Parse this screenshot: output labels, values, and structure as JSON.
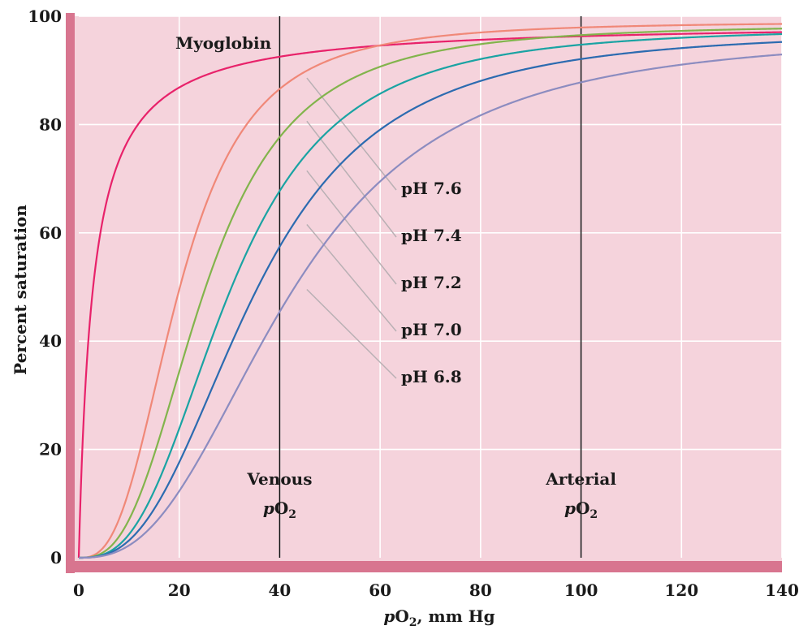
{
  "chart_data": {
    "type": "line",
    "xlabel_p": "p",
    "xlabel_o": "O",
    "xlabel_sub": "2",
    "xlabel_rest": ", mm Hg",
    "ylabel": "Percent saturation",
    "xlim": [
      0,
      140
    ],
    "ylim": [
      0,
      100
    ],
    "xticks": [
      0,
      20,
      40,
      60,
      80,
      100,
      120,
      140
    ],
    "yticks": [
      0,
      20,
      40,
      60,
      80,
      100
    ],
    "grid": true,
    "colors": {
      "plot_bg": "#f5d3dc",
      "frame": "#d8758f",
      "grid": "#ffffff"
    },
    "series": [
      {
        "name": "Myoglobin",
        "color": "#e8226a",
        "p50": 2.8,
        "n": 1.0,
        "smax": 99
      },
      {
        "name": "pH 7.6",
        "color": "#f08878",
        "p50": 20,
        "n": 2.8,
        "smax": 99
      },
      {
        "name": "pH 7.4",
        "color": "#82b44c",
        "p50": 25,
        "n": 2.8,
        "smax": 98.5
      },
      {
        "name": "pH 7.2",
        "color": "#1aa3a3",
        "p50": 30,
        "n": 2.8,
        "smax": 98
      },
      {
        "name": "pH 7.0",
        "color": "#2c6bb0",
        "p50": 35,
        "n": 2.7,
        "smax": 97.5
      },
      {
        "name": "pH 6.8",
        "color": "#8c8cc0",
        "p50": 42,
        "n": 2.6,
        "smax": 97
      }
    ],
    "markers": [
      {
        "x": 40,
        "line1": "Venous",
        "p": "p",
        "o": "O",
        "sub": "2"
      },
      {
        "x": 100,
        "line1": "Arterial",
        "p": "p",
        "o": "O",
        "sub": "2"
      }
    ]
  }
}
